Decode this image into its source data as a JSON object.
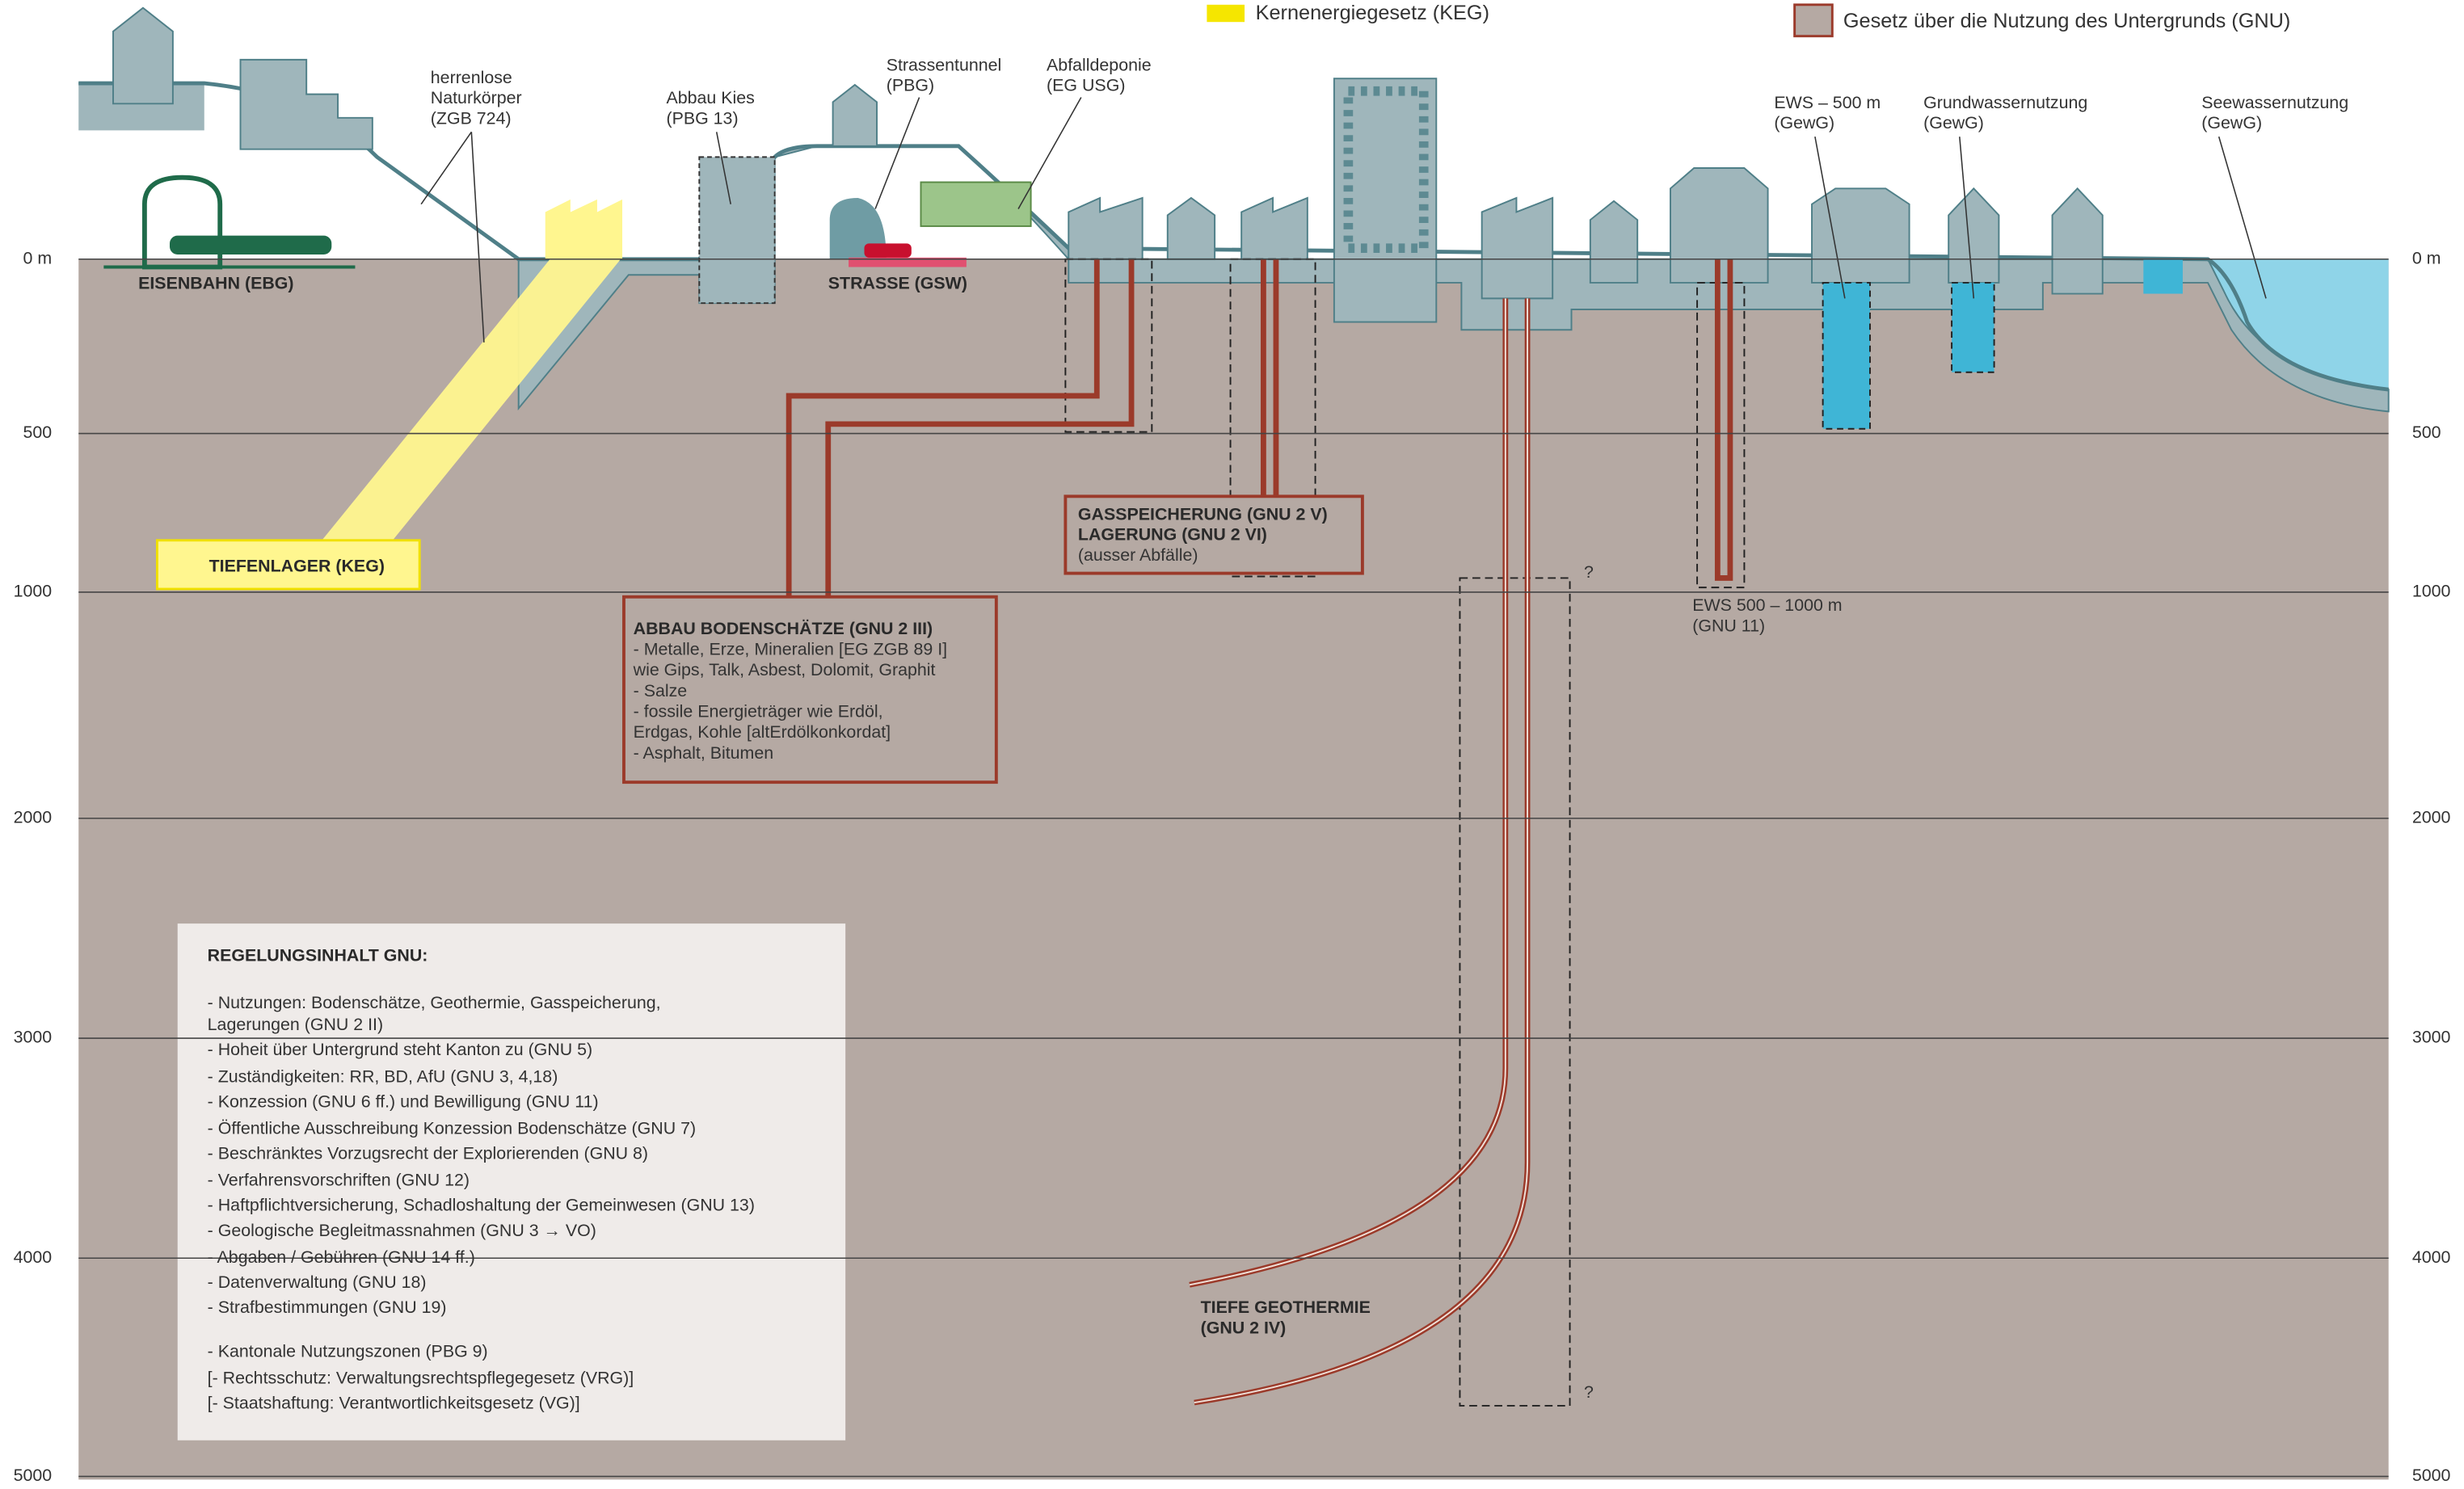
{
  "legend": [
    "Kernenergiegesetz (KEG)",
    "Gesetz über die Nutzung des Untergrunds (GNU)"
  ],
  "depth_labels": [
    "0 m",
    "500",
    "1000",
    "2000",
    "3000",
    "4000",
    "5000"
  ],
  "annotations": [
    {
      "lines": [
        "herrenlose",
        "Naturkörper",
        "(ZGB 724)"
      ]
    },
    {
      "lines": [
        "Abbau Kies",
        "(PBG 13)"
      ]
    },
    {
      "lines": [
        "Strassentunnel",
        "(PBG)"
      ]
    },
    {
      "lines": [
        "Abfalldeponie",
        "(EG USG)"
      ]
    },
    {
      "lines": [
        "EWS – 500 m",
        "(GewG)"
      ]
    },
    {
      "lines": [
        "Grundwassernutzung",
        "(GewG)"
      ]
    },
    {
      "lines": [
        "Seewassernutzung",
        "(GewG)"
      ]
    },
    {
      "lines": [
        "EWS 500 – 1000 m",
        "(GNU 11)"
      ]
    },
    {
      "lines": [
        "?"
      ]
    },
    {
      "lines": [
        "?"
      ]
    }
  ],
  "bold_labels": [
    {
      "lines": [
        "EISENBAHN (EBG)"
      ]
    },
    {
      "lines": [
        "STRASSE (GSW)"
      ]
    },
    {
      "lines": [
        "TIEFENLAGER (KEG)"
      ]
    },
    {
      "lines": [
        "TIEFE GEOTHERMIE",
        "(GNU 2 IV)"
      ]
    }
  ],
  "gas_box": {
    "title": [
      "GASSPEICHERUNG (GNU 2 V)",
      "LAGERUNG (GNU 2 VI)"
    ],
    "note": "(ausser Abfälle)"
  },
  "mining_box": {
    "title": "ABBAU BODENSCHÄTZE (GNU 2 III)",
    "items": [
      "-  Metalle, Erze, Mineralien [EG ZGB 89 I]",
      "   wie Gips, Talk, Asbest, Dolomit, Graphit",
      "-  Salze",
      "-  fossile Energieträger wie Erdöl,",
      "   Erdgas, Kohle [altErdölkonkordat]",
      "-  Asphalt, Bitumen"
    ]
  },
  "regulation_box": {
    "title": "REGELUNGSINHALT GNU:",
    "items": [
      "-  Nutzungen: Bodenschätze, Geothermie, Gasspeicherung,",
      "   Lagerungen (GNU 2 II)",
      "-  Hoheit über Untergrund steht Kanton zu (GNU 5)",
      "-  Zuständigkeiten: RR, BD, AfU (GNU 3, 4,18)",
      "-  Konzession (GNU 6 ff.) und Bewilligung (GNU 11)",
      "-  Öffentliche Ausschreibung Konzession Bodenschätze (GNU 7)",
      "-  Beschränktes Vorzugsrecht der Explorierenden (GNU 8)",
      "-  Verfahrensvorschriften (GNU 12)",
      "-  Haftpflichtversicherung, Schadloshaltung der Gemeinwesen (GNU 13)",
      "-  Geologische Begleitmassnahmen (GNU 3 → VO)",
      "-  Abgaben / Gebühren (GNU 14 ff.)",
      "-  Datenverwaltung (GNU 18)",
      "-  Strafbestimmungen (GNU 19)",
      "-  Kantonale Nutzungszonen (PBG 9)",
      "[- Rechtsschutz: Verwaltungsrechtspflegegesetz (VRG)]",
      "[- Staatshaftung: Verantwortlichkeitsgesetz (VG)]"
    ]
  }
}
